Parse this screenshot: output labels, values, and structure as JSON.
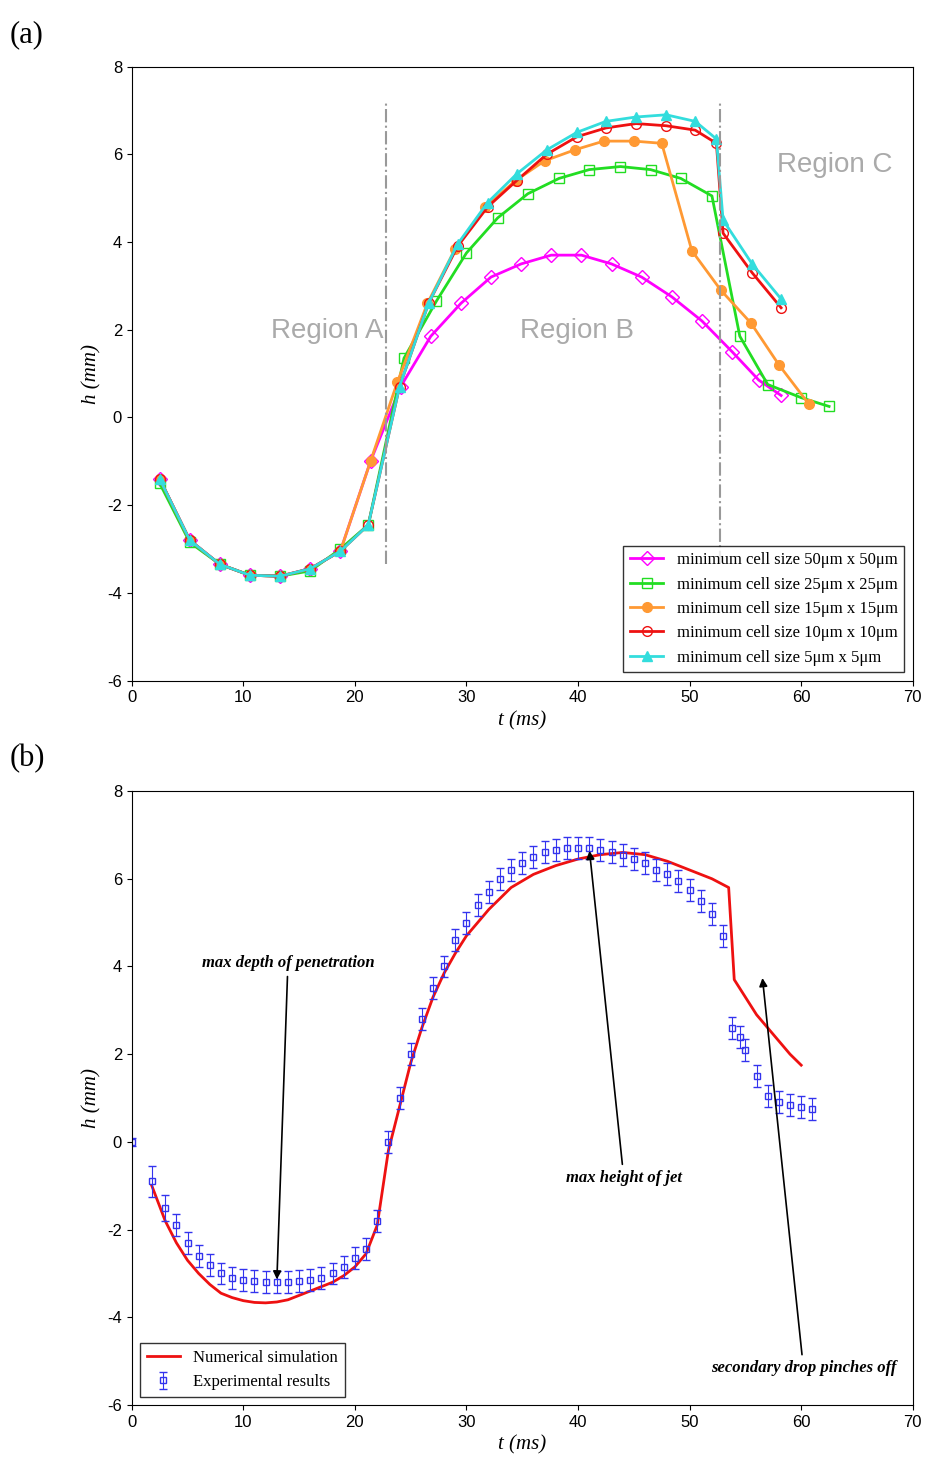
{
  "chart_data": [
    {
      "type": "line",
      "panel_label": "(a)",
      "xlabel": "t (ms)",
      "ylabel": "h (mm)",
      "xlim": [
        0,
        70
      ],
      "xticks": [
        0,
        10,
        20,
        30,
        40,
        50,
        60,
        70
      ],
      "ylim": [
        -6,
        8
      ],
      "yticks": [
        -6,
        -4,
        -2,
        0,
        2,
        4,
        6,
        8
      ],
      "legend": "lower right",
      "vlines": [
        22.8,
        52.7
      ],
      "region_labels": [
        "Region A",
        "Region B",
        "Region C"
      ],
      "series": [
        {
          "name": "minimum cell size 50μm x 50μm",
          "color": "#ff00ff",
          "marker": "diamond",
          "line_style": "solid",
          "x": [
            2.5,
            5.2,
            7.9,
            10.6,
            13.3,
            16,
            18.7,
            21.4,
            24.1,
            26.8,
            29.5,
            32.2,
            34.9,
            37.6,
            40.3,
            43,
            45.7,
            48.4,
            51.1,
            53.8,
            56.2,
            58.2
          ],
          "values": [
            -1.4,
            -2.8,
            -3.35,
            -3.6,
            -3.62,
            -3.45,
            -3.05,
            -1.0,
            0.7,
            1.85,
            2.6,
            3.2,
            3.5,
            3.7,
            3.7,
            3.5,
            3.2,
            2.75,
            2.2,
            1.5,
            0.85,
            0.5
          ]
        },
        {
          "name": "minimum cell size 25μm x 25μm",
          "color": "#22dd22",
          "marker": "square",
          "line_style": "solid",
          "x": [
            2.5,
            5.2,
            7.9,
            10.6,
            13.3,
            16,
            18.7,
            21.2,
            24.4,
            27.3,
            30.0,
            32.8,
            35.5,
            38.3,
            41.0,
            43.8,
            46.5,
            49.2,
            52.0,
            54.5,
            57.0,
            60.0,
            62.5
          ],
          "values": [
            -1.5,
            -2.85,
            -3.35,
            -3.6,
            -3.62,
            -3.5,
            -3.0,
            -2.45,
            1.35,
            2.65,
            3.75,
            4.55,
            5.1,
            5.45,
            5.65,
            5.72,
            5.65,
            5.45,
            5.05,
            1.85,
            0.75,
            0.45,
            0.25
          ]
        },
        {
          "name": "minimum cell size 15μm x 15μm",
          "color": "#ff9933",
          "marker": "filled_circle",
          "line_style": "solid",
          "x": [
            2.5,
            5.2,
            7.9,
            10.6,
            13.3,
            16,
            18.7,
            21.4,
            23.8,
            26.5,
            29.0,
            31.7,
            34.4,
            37.0,
            39.7,
            42.3,
            45.0,
            47.5,
            50.2,
            52.8,
            55.5,
            58.0,
            60.7
          ],
          "values": [
            -1.4,
            -2.8,
            -3.35,
            -3.6,
            -3.62,
            -3.45,
            -3.05,
            -1.0,
            0.8,
            2.6,
            3.85,
            4.8,
            5.4,
            5.85,
            6.1,
            6.3,
            6.3,
            6.25,
            3.8,
            2.9,
            2.15,
            1.2,
            0.3
          ]
        },
        {
          "name": "minimum cell size 10μm x 10μm",
          "color": "#ee1111",
          "marker": "circle",
          "line_style": "solid",
          "x": [
            2.5,
            5.2,
            7.9,
            10.6,
            13.3,
            16,
            18.7,
            21.2,
            24.0,
            26.6,
            29.2,
            31.9,
            34.5,
            37.2,
            39.9,
            42.5,
            45.2,
            47.9,
            50.5,
            52.4,
            53.0,
            55.6,
            58.2
          ],
          "values": [
            -1.4,
            -2.8,
            -3.35,
            -3.6,
            -3.62,
            -3.45,
            -3.05,
            -2.45,
            0.7,
            2.6,
            3.9,
            4.8,
            5.4,
            6.0,
            6.4,
            6.6,
            6.7,
            6.65,
            6.55,
            6.25,
            4.2,
            3.3,
            2.5
          ]
        },
        {
          "name": "minimum cell size 5μm x 5μm",
          "color": "#33dddd",
          "marker": "triangle",
          "line_style": "solid",
          "x": [
            2.5,
            5.2,
            7.9,
            10.6,
            13.3,
            16,
            18.7,
            21.2,
            24.0,
            26.6,
            29.2,
            31.9,
            34.5,
            37.2,
            39.9,
            42.5,
            45.2,
            47.9,
            50.5,
            52.4,
            53.0,
            55.6,
            58.2
          ],
          "values": [
            -1.4,
            -2.8,
            -3.35,
            -3.6,
            -3.62,
            -3.45,
            -3.05,
            -2.45,
            0.7,
            2.6,
            3.95,
            4.9,
            5.55,
            6.1,
            6.5,
            6.75,
            6.85,
            6.9,
            6.75,
            6.35,
            4.5,
            3.5,
            2.7
          ]
        }
      ]
    },
    {
      "type": "line",
      "panel_label": "(b)",
      "xlabel": "t (ms)",
      "ylabel": "h (mm)",
      "xlim": [
        0,
        70
      ],
      "xticks": [
        0,
        10,
        20,
        30,
        40,
        50,
        60,
        70
      ],
      "ylim": [
        -6,
        8
      ],
      "yticks": [
        -6,
        -4,
        -2,
        0,
        2,
        4,
        6,
        8
      ],
      "legend": "lower left",
      "annotations": [
        {
          "text": "max depth of penetration",
          "x": 13,
          "y": -3.2
        },
        {
          "text": "max height of jet",
          "x": 41,
          "y": 6.7
        },
        {
          "text": "secondary drop pinches off",
          "x": 56.5,
          "y": 3.8
        }
      ],
      "series": [
        {
          "name": "Numerical simulation",
          "color": "#ee1111",
          "type": "line",
          "line_style": "solid",
          "x": [
            1.8,
            3,
            4,
            5,
            6,
            7,
            8,
            9,
            10,
            11,
            12,
            13,
            14,
            15,
            16,
            17,
            18,
            19,
            20,
            21,
            22,
            23,
            24,
            25,
            26,
            27,
            28,
            29,
            30,
            32,
            34,
            36,
            38,
            40,
            42,
            44,
            46,
            48,
            50,
            52,
            53.5,
            54,
            55,
            56,
            57,
            58,
            59,
            60
          ],
          "values": [
            -1.0,
            -1.8,
            -2.3,
            -2.7,
            -3.0,
            -3.25,
            -3.45,
            -3.55,
            -3.62,
            -3.66,
            -3.67,
            -3.65,
            -3.6,
            -3.5,
            -3.4,
            -3.3,
            -3.2,
            -3.05,
            -2.85,
            -2.55,
            -1.9,
            -0.2,
            0.8,
            1.8,
            2.6,
            3.3,
            3.85,
            4.3,
            4.7,
            5.3,
            5.8,
            6.1,
            6.3,
            6.45,
            6.55,
            6.6,
            6.55,
            6.4,
            6.2,
            6.0,
            5.8,
            3.7,
            3.3,
            2.9,
            2.6,
            2.3,
            2.0,
            1.75
          ]
        },
        {
          "name": "Experimental results",
          "color": "#3333ee",
          "type": "scatter",
          "marker": "square",
          "line_style": "none",
          "x": [
            0,
            1.8,
            3,
            4,
            5,
            6,
            7,
            8,
            9,
            10,
            11,
            12,
            13,
            14,
            15,
            16,
            17,
            18,
            19,
            20,
            21,
            22,
            23,
            24,
            25,
            26,
            27,
            28,
            29,
            30,
            31,
            32,
            33,
            34,
            35,
            36,
            37,
            38,
            39,
            40,
            41,
            42,
            43,
            44,
            45,
            46,
            47,
            48,
            49,
            50,
            51,
            52,
            53,
            53.8,
            54.5,
            55,
            56,
            57,
            58,
            59,
            60,
            61
          ],
          "values": [
            0,
            -0.9,
            -1.5,
            -1.9,
            -2.3,
            -2.6,
            -2.8,
            -3.0,
            -3.1,
            -3.15,
            -3.18,
            -3.2,
            -3.2,
            -3.2,
            -3.18,
            -3.15,
            -3.1,
            -3.0,
            -2.85,
            -2.65,
            -2.45,
            -1.8,
            0.0,
            1.0,
            2.0,
            2.8,
            3.5,
            4.0,
            4.6,
            5.0,
            5.4,
            5.7,
            6.0,
            6.2,
            6.35,
            6.5,
            6.6,
            6.65,
            6.7,
            6.7,
            6.7,
            6.65,
            6.6,
            6.55,
            6.45,
            6.35,
            6.2,
            6.1,
            5.95,
            5.75,
            5.5,
            5.2,
            4.7,
            2.6,
            2.4,
            2.1,
            1.5,
            1.05,
            0.9,
            0.85,
            0.8,
            0.75
          ],
          "errors": [
            0.1,
            0.35,
            0.3,
            0.25,
            0.25,
            0.25,
            0.25,
            0.25,
            0.25,
            0.25,
            0.25,
            0.25,
            0.25,
            0.25,
            0.25,
            0.25,
            0.25,
            0.25,
            0.25,
            0.25,
            0.25,
            0.25,
            0.25,
            0.25,
            0.25,
            0.25,
            0.25,
            0.25,
            0.25,
            0.25,
            0.25,
            0.25,
            0.25,
            0.25,
            0.25,
            0.25,
            0.25,
            0.25,
            0.25,
            0.25,
            0.25,
            0.25,
            0.25,
            0.25,
            0.25,
            0.25,
            0.25,
            0.25,
            0.25,
            0.25,
            0.25,
            0.25,
            0.25,
            0.25,
            0.25,
            0.25,
            0.25,
            0.25,
            0.25,
            0.25,
            0.25,
            0.25
          ]
        }
      ]
    }
  ]
}
